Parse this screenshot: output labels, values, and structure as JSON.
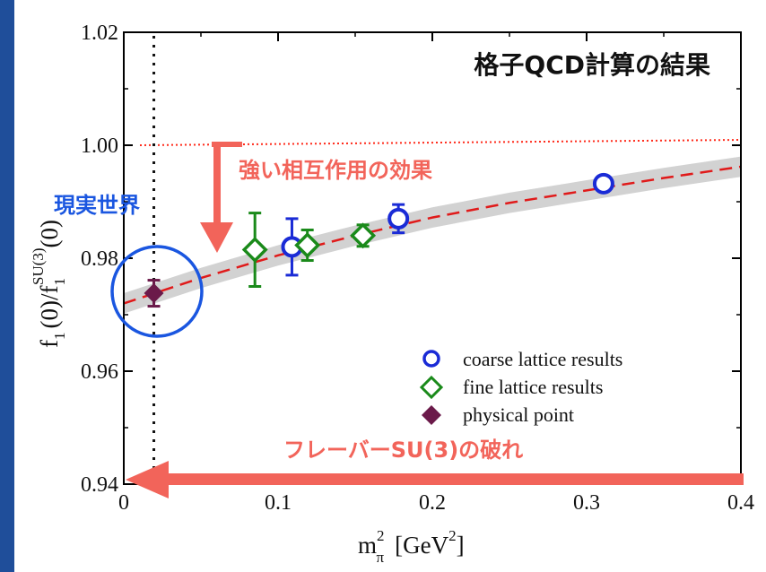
{
  "chart_data": {
    "type": "scatter",
    "title": "格子QCD計算の結果",
    "xlabel": "m",
    "xlabel_sup": "2",
    "xlabel_sub": "π",
    "xlabel_unit_pre": "[GeV",
    "xlabel_unit_sup": "2",
    "xlabel_unit_post": "]",
    "ylabel_a": "f",
    "ylabel_a_sub": "1",
    "ylabel_mid": "(0)/f",
    "ylabel_b_sub": "1",
    "ylabel_b_sup": "SU(3)",
    "ylabel_end": "(0)",
    "xlim": [
      0,
      0.4
    ],
    "ylim": [
      0.94,
      1.02
    ],
    "x_ticks": [
      0,
      0.1,
      0.2,
      0.3,
      0.4
    ],
    "x_tick_labels": [
      "0",
      "0.1",
      "0.2",
      "0.3",
      "0.4"
    ],
    "y_ticks": [
      0.94,
      0.96,
      0.98,
      1.0,
      1.02
    ],
    "y_tick_labels": [
      "0.94",
      "0.96",
      "0.98",
      "1.00",
      "1.02"
    ],
    "physical_line_x": 0.0195,
    "reference_line_y": 1.0,
    "series": [
      {
        "name": "coarse lattice results",
        "marker": "circle",
        "color": "#1a2bd6",
        "points": [
          {
            "x": 0.109,
            "y": 0.982,
            "err": 0.005
          },
          {
            "x": 0.178,
            "y": 0.987,
            "err": 0.0025
          },
          {
            "x": 0.311,
            "y": 0.9932,
            "err": 0.0012
          }
        ]
      },
      {
        "name": "fine lattice results",
        "marker": "diamond",
        "color": "#1a8a1a",
        "points": [
          {
            "x": 0.085,
            "y": 0.9815,
            "err": 0.0065
          },
          {
            "x": 0.119,
            "y": 0.9823,
            "err": 0.0027
          },
          {
            "x": 0.155,
            "y": 0.984,
            "err": 0.0019
          }
        ]
      },
      {
        "name": "physical point",
        "marker": "filled-diamond",
        "color": "#6b1a4a",
        "points": [
          {
            "x": 0.0195,
            "y": 0.9738,
            "err": 0.0023
          }
        ]
      }
    ],
    "fit_curve": {
      "color": "#e01a1a",
      "band_color": "#cccccc",
      "band_halfwidth": 0.0018,
      "points": [
        [
          0,
          0.972
        ],
        [
          0.05,
          0.9765
        ],
        [
          0.1,
          0.9805
        ],
        [
          0.15,
          0.984
        ],
        [
          0.2,
          0.9872
        ],
        [
          0.25,
          0.9898
        ],
        [
          0.3,
          0.992
        ],
        [
          0.35,
          0.9942
        ],
        [
          0.4,
          0.9962
        ]
      ]
    },
    "annotations": {
      "strong_interaction": "強い相互作用の効果",
      "real_world": "現実世界",
      "flavor_breaking": "フレーバーSU(3)の破れ"
    },
    "annotation_colors": {
      "arrow": "#f2645a",
      "real_world_text": "#1a56e0",
      "circle": "#1a56e0",
      "reference_line": "#ff2a1a"
    },
    "legend_position": "bottom-right",
    "grid": false
  }
}
